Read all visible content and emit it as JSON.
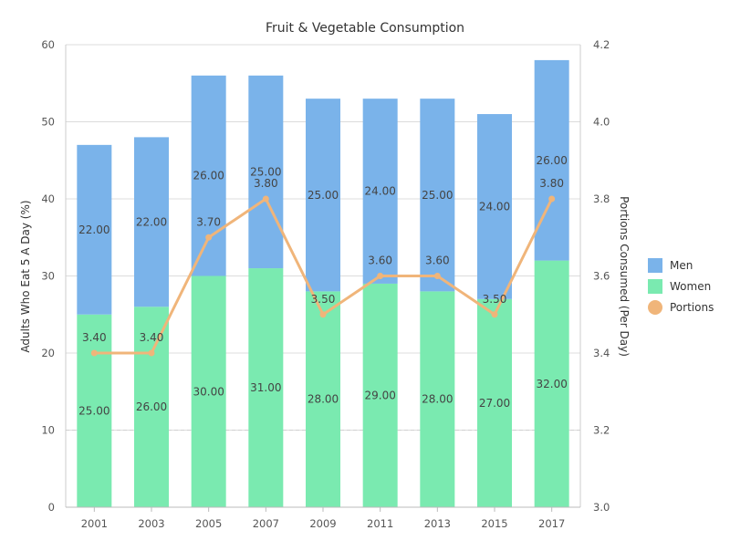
{
  "chart_data": {
    "type": "bar",
    "title": "Fruit & Vegetable Consumption",
    "categories": [
      "2001",
      "2003",
      "2005",
      "2007",
      "2009",
      "2011",
      "2013",
      "2015",
      "2017"
    ],
    "series": [
      {
        "name": "Women",
        "type": "stacked-bar",
        "axis": "left",
        "color": "#7aeab0",
        "values": [
          25,
          26,
          30,
          31,
          28,
          29,
          28,
          27,
          32
        ]
      },
      {
        "name": "Men",
        "type": "stacked-bar",
        "axis": "left",
        "color": "#7ab3ea",
        "values": [
          22,
          22,
          26,
          25,
          25,
          24,
          25,
          24,
          26
        ]
      },
      {
        "name": "Portions",
        "type": "line",
        "axis": "right",
        "color": "#f0b57a",
        "values": [
          3.4,
          3.4,
          3.7,
          3.8,
          3.5,
          3.6,
          3.6,
          3.5,
          3.8
        ]
      }
    ],
    "ylabel_left": "Adults Who Eat 5 A Day (%)",
    "ylabel_right": "Portions Consumed (Per Day)",
    "ylim_left": [
      0,
      60
    ],
    "yticks_left": [
      "0",
      "10",
      "20",
      "30",
      "40",
      "50",
      "60"
    ],
    "ylim_right": [
      3.0,
      4.2
    ],
    "yticks_right": [
      "3.0",
      "3.2",
      "3.4",
      "3.6",
      "3.8",
      "4.0",
      "4.2"
    ],
    "grid": true,
    "legend": {
      "position": "right",
      "items": [
        {
          "label": "Men",
          "color": "#7ab3ea",
          "shape": "square"
        },
        {
          "label": "Women",
          "color": "#7aeab0",
          "square": true,
          "shape": "square"
        },
        {
          "label": "Portions",
          "color": "#f0b57a",
          "shape": "circle"
        }
      ]
    }
  }
}
